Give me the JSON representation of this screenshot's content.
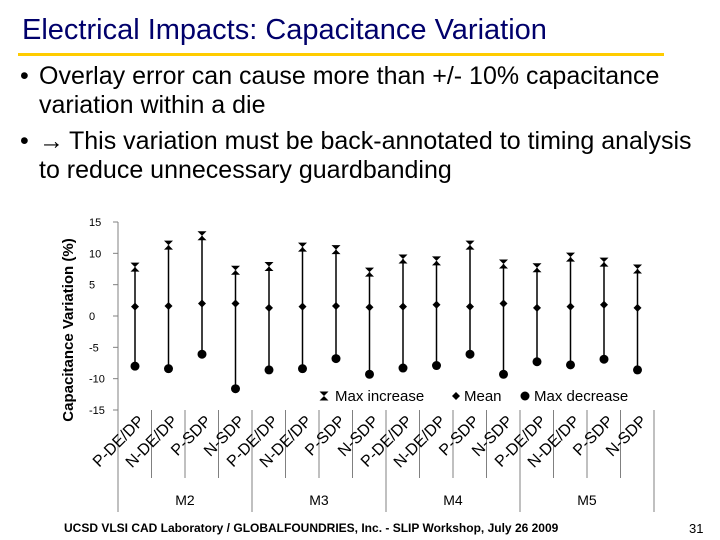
{
  "slide": {
    "title": "Electrical Impacts: Capacitance Variation",
    "bullets": [
      {
        "marker": "•",
        "icon": "",
        "text": "Overlay error can cause more than +/- 10% capacitance variation within a die"
      },
      {
        "marker": "•",
        "icon": "→",
        "text": "This variation must be back-annotated to timing analysis to reduce unnecessary guardbanding"
      }
    ],
    "footer": "UCSD VLSI CAD Laboratory / GLOBALFOUNDRIES, Inc. - SLIP Workshop, July 26 2009",
    "page_number": "31"
  },
  "chart_data": {
    "type": "scatter",
    "title": "",
    "xlabel": "",
    "ylabel": "Capacitance Variation (%)",
    "ylim": [
      -15,
      15
    ],
    "yticks": [
      15,
      10,
      5,
      0,
      -5,
      -10,
      -15
    ],
    "categories": [
      "P-DE/DP",
      "N-DE/DP",
      "P-SDP",
      "N-SDP",
      "P-DE/DP",
      "N-DE/DP",
      "P-SDP",
      "N-SDP",
      "P-DE/DP",
      "N-DE/DP",
      "P-SDP",
      "N-SDP",
      "P-DE/DP",
      "N-DE/DP",
      "P-SDP",
      "N-SDP"
    ],
    "groups": [
      {
        "label": "M2",
        "start": 0,
        "count": 4
      },
      {
        "label": "M3",
        "start": 4,
        "count": 4
      },
      {
        "label": "M4",
        "start": 8,
        "count": 4
      },
      {
        "label": "M5",
        "start": 12,
        "count": 4
      }
    ],
    "series": [
      {
        "name": "Max increase",
        "marker": "star",
        "values": [
          7.8,
          11.3,
          12.8,
          7.3,
          7.9,
          11.0,
          10.6,
          7.0,
          9.1,
          8.8,
          11.3,
          8.3,
          7.7,
          9.4,
          8.6,
          7.5
        ]
      },
      {
        "name": "Mean",
        "marker": "diamond",
        "values": [
          1.5,
          1.6,
          2.0,
          2.0,
          1.3,
          1.5,
          1.6,
          1.4,
          1.5,
          1.8,
          1.5,
          2.0,
          1.3,
          1.5,
          1.8,
          1.3
        ]
      },
      {
        "name": "Max decrease",
        "marker": "circle",
        "values": [
          -8.0,
          -8.4,
          -6.1,
          -11.6,
          -8.6,
          -8.4,
          -6.8,
          -9.3,
          -8.3,
          -7.9,
          -6.1,
          -9.3,
          -7.3,
          -7.8,
          -6.9,
          -8.6
        ]
      }
    ],
    "legend_position": "bottom-right"
  }
}
